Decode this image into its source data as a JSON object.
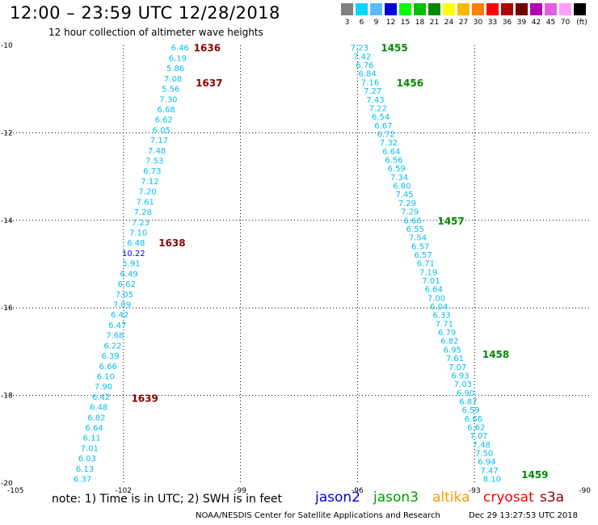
{
  "header": {
    "title": "12:00 – 23:59 UTC 12/28/2018",
    "subtitle": "12 hour collection of altimeter wave heights"
  },
  "color_scale": {
    "unit_label": "(ft)",
    "items": [
      {
        "label": "3",
        "color": "#808080"
      },
      {
        "label": "6",
        "color": "#00d8ff"
      },
      {
        "label": "9",
        "color": "#60b8ff"
      },
      {
        "label": "12",
        "color": "#0000e0"
      },
      {
        "label": "15",
        "color": "#00ff00"
      },
      {
        "label": "18",
        "color": "#00c000"
      },
      {
        "label": "21",
        "color": "#008800"
      },
      {
        "label": "24",
        "color": "#ffff00"
      },
      {
        "label": "27",
        "color": "#ffb800"
      },
      {
        "label": "30",
        "color": "#ff8000"
      },
      {
        "label": "33",
        "color": "#ff0000"
      },
      {
        "label": "36",
        "color": "#b00000"
      },
      {
        "label": "39",
        "color": "#700000"
      },
      {
        "label": "42",
        "color": "#b000b0"
      },
      {
        "label": "45",
        "color": "#e060e0"
      },
      {
        "label": "70",
        "color": "#ffa0ff"
      },
      {
        "label": "",
        "color": "#000000"
      }
    ]
  },
  "map": {
    "lon_ticks": [
      "-105",
      "-102",
      "-99",
      "-96",
      "-93",
      "-90"
    ],
    "lat_ticks": [
      "-10",
      "-12",
      "-14",
      "-16",
      "-18",
      "-20"
    ],
    "lon_range": [
      -105,
      -90
    ],
    "lat_range": [
      -20,
      -10
    ],
    "gridlines": "dotted"
  },
  "tracks": [
    {
      "name": "track-left",
      "start": {
        "lat": -10.05,
        "lon": -100.55
      },
      "end": {
        "lat": -19.9,
        "lon": -103.05
      },
      "values": [
        "6.46",
        "6.19",
        "5.86",
        "7.08",
        "5.56",
        "7.30",
        "6.68",
        "6.62",
        "6.05",
        "7.17",
        "7.48",
        "7.53",
        "6.73",
        "7.12",
        "7.20",
        "7.61",
        "7.28",
        "7.23",
        "7.10",
        "6.48",
        "10.22",
        "5.91",
        "6.49",
        "6.62",
        "7.05",
        "7.09",
        "6.42",
        "6.47",
        "7.68",
        "6.22",
        "6.39",
        "6.66",
        "6.10",
        "7.90",
        "6.42",
        "6.48",
        "6.82",
        "6.64",
        "6.11",
        "7.01",
        "6.03",
        "6.13",
        "6.37"
      ],
      "value_colors": {
        "10.22": "#0000e0"
      }
    },
    {
      "name": "track-right",
      "start": {
        "lat": -10.05,
        "lon": -95.95
      },
      "end": {
        "lat": -19.9,
        "lon": -92.55
      },
      "values": [
        "7.23",
        "7.42",
        "6.76",
        "6.84",
        "7.16",
        "7.27",
        "7.43",
        "7.22",
        "6.54",
        "6.67",
        "6.72",
        "7.32",
        "6.64",
        "6.56",
        "6.59",
        "7.34",
        "6.80",
        "7.45",
        "7.29",
        "7.29",
        "6.66",
        "6.55",
        "7.54",
        "6.57",
        "6.57",
        "6.71",
        "7.19",
        "7.01",
        "6.64",
        "7.00",
        "6.04",
        "6.33",
        "7.71",
        "6.79",
        "6.82",
        "6.95",
        "7.61",
        "7.07",
        "6.93",
        "7.03",
        "6.90",
        "6.87",
        "6.59",
        "6.66",
        "6.62",
        "7.07",
        "7.48",
        "7.50",
        "6.94",
        "7.47",
        "8.10"
      ],
      "value_colors": {}
    }
  ],
  "time_labels": [
    {
      "text": "1636",
      "lat": -10.05,
      "lon": -100.2,
      "satellite": "cryosat"
    },
    {
      "text": "1637",
      "lat": -10.85,
      "lon": -100.15,
      "satellite": "cryosat"
    },
    {
      "text": "1638",
      "lat": -14.5,
      "lon": -101.1,
      "satellite": "cryosat"
    },
    {
      "text": "1639",
      "lat": -18.05,
      "lon": -101.8,
      "satellite": "cryosat"
    },
    {
      "text": "1455",
      "lat": -10.05,
      "lon": -95.4,
      "satellite": "jason3"
    },
    {
      "text": "1456",
      "lat": -10.85,
      "lon": -95.0,
      "satellite": "jason3"
    },
    {
      "text": "1457",
      "lat": -14.0,
      "lon": -93.95,
      "satellite": "jason3"
    },
    {
      "text": "1458",
      "lat": -17.05,
      "lon": -92.8,
      "satellite": "jason3"
    },
    {
      "text": "1459",
      "lat": -19.8,
      "lon": -91.8,
      "satellite": "jason3"
    }
  ],
  "satellites": [
    {
      "name": "jason2",
      "color": "#0000e0"
    },
    {
      "name": "jason3",
      "color": "#00a000"
    },
    {
      "name": "altika",
      "color": "#ff9900"
    },
    {
      "name": "cryosat",
      "color": "#ff0000"
    },
    {
      "name": "s3a",
      "color": "#8b0000"
    }
  ],
  "track_value_color": "#00c0ee",
  "note": "note: 1) Time is in UTC; 2) SWH is in feet",
  "footer": "NOAA/NESDIS Center for Satellite Applications and Research",
  "timestamp": "Dec 29 13:27:53 UTC 2018"
}
